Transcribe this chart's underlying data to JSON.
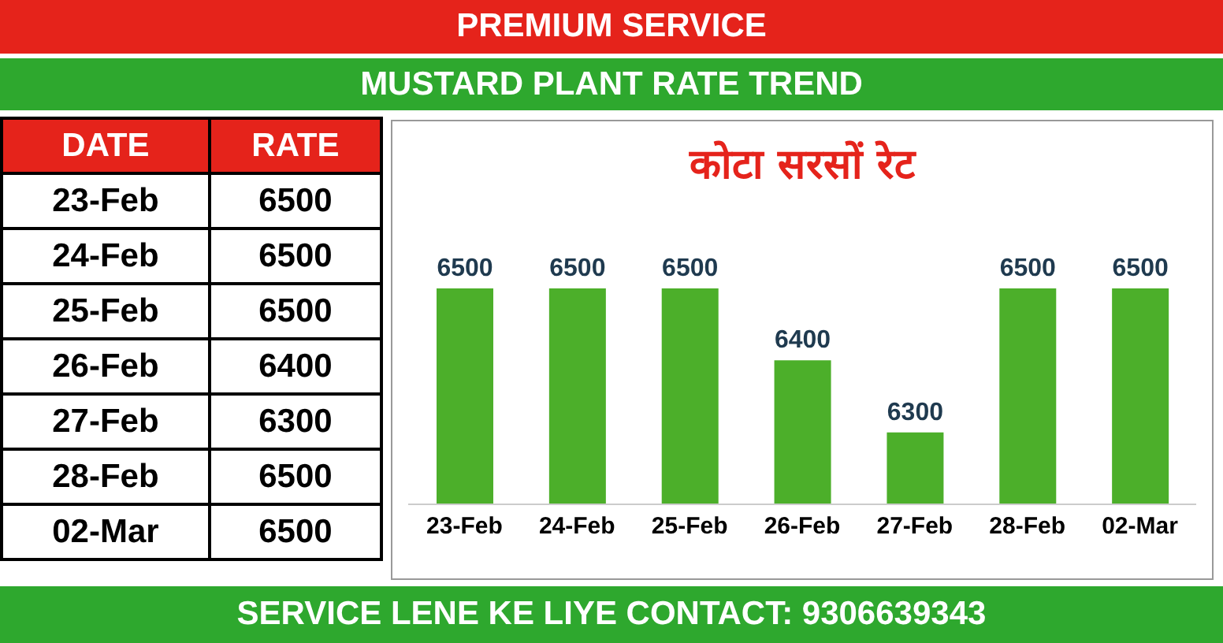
{
  "chart_data": [
    {
      "type": "other",
      "title": "MUSTARD PLANT RATE TREND",
      "annotations": [
        "PREMIUM SERVICE",
        "DATE",
        "RATE",
        "SERVICE LENE KE LIYE CONTACT: 9306639343"
      ],
      "categories": [
        "23-Feb",
        "24-Feb",
        "25-Feb",
        "26-Feb",
        "27-Feb",
        "28-Feb",
        "02-Mar"
      ],
      "data_labels": true,
      "value_labels": [
        "6500",
        "6500",
        "6500",
        "6400",
        "6300",
        "6500",
        "6500"
      ]
    },
    {
      "type": "bar",
      "title": "कोटा सरसों रेट",
      "categories": [
        "23-Feb",
        "24-Feb",
        "25-Feb",
        "26-Feb",
        "27-Feb",
        "28-Feb",
        "02-Mar"
      ],
      "values": [
        6500,
        6500,
        6500,
        6400,
        6300,
        6500,
        6500
      ],
      "color": "#4caf2a",
      "ylim": [
        6200,
        6500
      ],
      "tick_labels": "x",
      "data_labels": true
    }
  ]
}
